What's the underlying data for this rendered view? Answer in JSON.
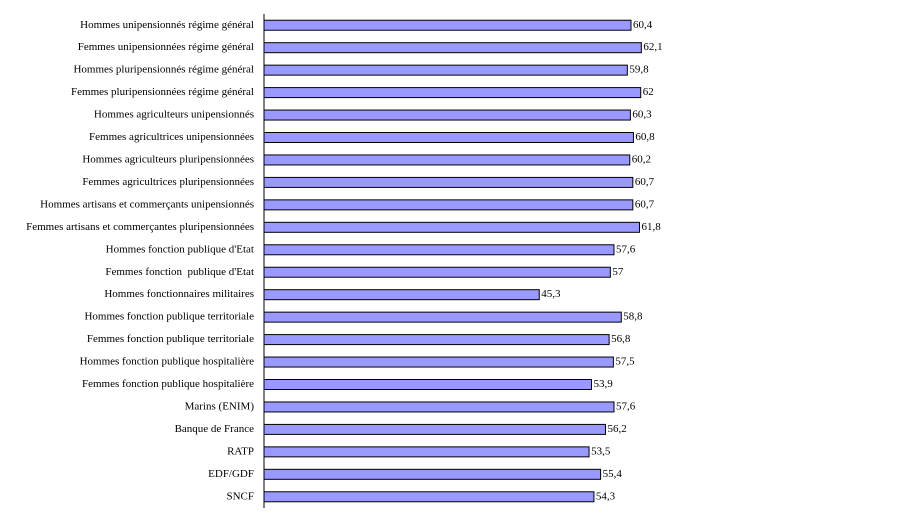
{
  "chart_data": {
    "type": "hbar",
    "categories": [
      "Hommes unipensionnés régime général",
      "Femmes unipensionnées régime général",
      "Hommes pluripensionnés régime général",
      "Femmes pluripensionnées régime général",
      "Hommes agriculteurs unipensionnés",
      "Femmes agricultrices unipensionnées",
      "Hommes agriculteurs pluripensionnées",
      "Femmes agricultrices pluripensionnées",
      "Hommes artisans et commerçants unipensionnés",
      "Femmes artisans et commerçantes pluripensionnées",
      "Hommes fonction publique d'Etat",
      "Femmes fonction  publique d'Etat",
      "Hommes fonctionnaires militaires",
      "Hommes fonction publique territoriale",
      "Femmes fonction publique territoriale",
      "Hommes fonction publique hospitalière",
      "Femmes fonction publique hospitalière",
      "Marins (ENIM)",
      "Banque de France",
      "RATP",
      "EDF/GDF",
      "SNCF"
    ],
    "values": [
      60.4,
      62.1,
      59.8,
      62,
      60.3,
      60.8,
      60.2,
      60.7,
      60.7,
      61.8,
      57.6,
      57,
      45.3,
      58.8,
      56.8,
      57.5,
      53.9,
      57.6,
      56.2,
      53.5,
      55.4,
      54.3
    ],
    "value_labels": [
      "60,4",
      "62,1",
      "59,8",
      "62",
      "60,3",
      "60,8",
      "60,2",
      "60,7",
      "60,7",
      "61,8",
      "57,6",
      "57",
      "45,3",
      "58,8",
      "56,8",
      "57,5",
      "53,9",
      "57,6",
      "56,2",
      "53,5",
      "55,4",
      "54,3"
    ],
    "color": "#9999ff",
    "xlim": [
      0,
      100
    ]
  }
}
